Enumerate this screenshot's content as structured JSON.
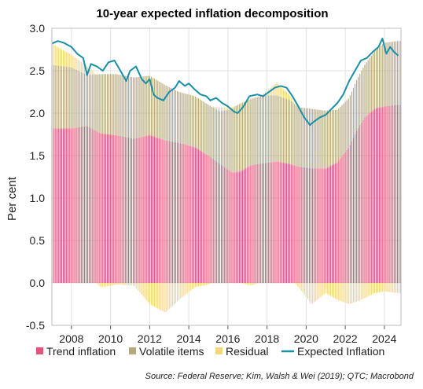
{
  "chart_data": {
    "type": "bar",
    "title": "10-year expected inflation decomposition",
    "ylabel": "Per cent",
    "ylim": [
      -0.5,
      3.0
    ],
    "yticks": [
      "3.0",
      "2.5",
      "2.0",
      "1.5",
      "1.0",
      "0.5",
      "0.0",
      "-0.5"
    ],
    "xticks": [
      "2008",
      "2010",
      "2012",
      "2014",
      "2016",
      "2018",
      "2020",
      "2022",
      "2024"
    ],
    "xlim": [
      2007.0,
      2024.85
    ],
    "grid": true,
    "legend_position": "bottom",
    "source": "Source: Federal Reserve; Kim, Walsh & Wei (2019); QTC; Macrobond",
    "colors": {
      "trend": "#e8527a",
      "volatile": "#b5a97e",
      "residual": "#f5d77a",
      "expected": "#1a8fa5"
    },
    "series": [
      {
        "name": "Trend inflation",
        "type": "stacked-bar",
        "points": [
          [
            2007.0,
            1.82
          ],
          [
            2008.0,
            1.82
          ],
          [
            2008.8,
            1.85
          ],
          [
            2009.5,
            1.76
          ],
          [
            2010.3,
            1.74
          ],
          [
            2011.2,
            1.7
          ],
          [
            2012.0,
            1.74
          ],
          [
            2012.8,
            1.68
          ],
          [
            2013.5,
            1.65
          ],
          [
            2014.3,
            1.6
          ],
          [
            2015.0,
            1.5
          ],
          [
            2015.6,
            1.4
          ],
          [
            2016.2,
            1.3
          ],
          [
            2016.6,
            1.31
          ],
          [
            2017.2,
            1.39
          ],
          [
            2017.8,
            1.41
          ],
          [
            2018.5,
            1.43
          ],
          [
            2019.2,
            1.4
          ],
          [
            2019.6,
            1.37
          ],
          [
            2020.3,
            1.35
          ],
          [
            2021.0,
            1.35
          ],
          [
            2021.6,
            1.42
          ],
          [
            2022.2,
            1.6
          ],
          [
            2022.6,
            1.8
          ],
          [
            2023.0,
            1.95
          ],
          [
            2023.5,
            2.05
          ],
          [
            2024.0,
            2.08
          ],
          [
            2024.7,
            2.1
          ]
        ]
      },
      {
        "name": "Volatile items",
        "type": "stacked-bar",
        "points": [
          [
            2007.0,
            0.75
          ],
          [
            2008.0,
            0.72
          ],
          [
            2008.8,
            0.6
          ],
          [
            2009.5,
            0.7
          ],
          [
            2010.3,
            0.72
          ],
          [
            2011.2,
            0.72
          ],
          [
            2012.0,
            0.7
          ],
          [
            2012.8,
            0.65
          ],
          [
            2013.5,
            0.6
          ],
          [
            2014.3,
            0.6
          ],
          [
            2015.0,
            0.6
          ],
          [
            2015.6,
            0.62
          ],
          [
            2016.2,
            0.75
          ],
          [
            2016.6,
            0.8
          ],
          [
            2017.2,
            0.78
          ],
          [
            2017.8,
            0.8
          ],
          [
            2018.5,
            0.78
          ],
          [
            2019.2,
            0.75
          ],
          [
            2019.6,
            0.7
          ],
          [
            2020.3,
            0.7
          ],
          [
            2021.0,
            0.68
          ],
          [
            2021.6,
            0.62
          ],
          [
            2022.2,
            0.58
          ],
          [
            2022.6,
            0.6
          ],
          [
            2023.0,
            0.62
          ],
          [
            2023.5,
            0.68
          ],
          [
            2024.0,
            0.75
          ],
          [
            2024.7,
            0.75
          ]
        ]
      },
      {
        "name": "Residual",
        "type": "stacked-bar",
        "points": [
          [
            2007.0,
            0.25
          ],
          [
            2008.0,
            0.15
          ],
          [
            2008.8,
            0.1
          ],
          [
            2009.5,
            -0.05
          ],
          [
            2010.3,
            -0.02
          ],
          [
            2011.2,
            -0.03
          ],
          [
            2012.0,
            -0.25
          ],
          [
            2012.8,
            -0.35
          ],
          [
            2013.5,
            -0.2
          ],
          [
            2014.3,
            -0.05
          ],
          [
            2015.0,
            -0.02
          ],
          [
            2015.6,
            0.05
          ],
          [
            2016.2,
            0.02
          ],
          [
            2016.6,
            0.0
          ],
          [
            2017.2,
            -0.03
          ],
          [
            2017.8,
            0.02
          ],
          [
            2018.5,
            0.15
          ],
          [
            2019.2,
            0.05
          ],
          [
            2019.6,
            -0.05
          ],
          [
            2020.3,
            -0.25
          ],
          [
            2021.0,
            -0.12
          ],
          [
            2021.6,
            -0.2
          ],
          [
            2022.2,
            -0.25
          ],
          [
            2022.6,
            -0.22
          ],
          [
            2023.0,
            -0.18
          ],
          [
            2023.5,
            -0.12
          ],
          [
            2024.0,
            -0.1
          ],
          [
            2024.7,
            -0.12
          ]
        ]
      },
      {
        "name": "Expected Inflation",
        "type": "line",
        "points": [
          [
            2007.0,
            2.82
          ],
          [
            2007.3,
            2.85
          ],
          [
            2007.6,
            2.83
          ],
          [
            2008.0,
            2.78
          ],
          [
            2008.3,
            2.7
          ],
          [
            2008.6,
            2.65
          ],
          [
            2008.8,
            2.45
          ],
          [
            2009.0,
            2.58
          ],
          [
            2009.3,
            2.55
          ],
          [
            2009.6,
            2.5
          ],
          [
            2009.9,
            2.6
          ],
          [
            2010.2,
            2.62
          ],
          [
            2010.5,
            2.5
          ],
          [
            2010.8,
            2.38
          ],
          [
            2011.0,
            2.5
          ],
          [
            2011.3,
            2.55
          ],
          [
            2011.6,
            2.4
          ],
          [
            2011.8,
            2.35
          ],
          [
            2012.0,
            2.4
          ],
          [
            2012.2,
            2.22
          ],
          [
            2012.4,
            2.18
          ],
          [
            2012.7,
            2.15
          ],
          [
            2013.0,
            2.25
          ],
          [
            2013.3,
            2.3
          ],
          [
            2013.5,
            2.38
          ],
          [
            2013.8,
            2.32
          ],
          [
            2014.0,
            2.35
          ],
          [
            2014.3,
            2.28
          ],
          [
            2014.6,
            2.22
          ],
          [
            2014.9,
            2.2
          ],
          [
            2015.1,
            2.15
          ],
          [
            2015.4,
            2.18
          ],
          [
            2015.7,
            2.12
          ],
          [
            2016.0,
            2.08
          ],
          [
            2016.3,
            2.02
          ],
          [
            2016.5,
            2.0
          ],
          [
            2016.8,
            2.08
          ],
          [
            2017.1,
            2.2
          ],
          [
            2017.5,
            2.22
          ],
          [
            2017.8,
            2.2
          ],
          [
            2018.1,
            2.25
          ],
          [
            2018.4,
            2.3
          ],
          [
            2018.7,
            2.32
          ],
          [
            2019.0,
            2.3
          ],
          [
            2019.3,
            2.2
          ],
          [
            2019.6,
            2.08
          ],
          [
            2019.9,
            1.95
          ],
          [
            2020.2,
            1.86
          ],
          [
            2020.4,
            1.9
          ],
          [
            2020.7,
            1.95
          ],
          [
            2021.0,
            1.98
          ],
          [
            2021.3,
            2.05
          ],
          [
            2021.6,
            2.12
          ],
          [
            2021.9,
            2.22
          ],
          [
            2022.2,
            2.38
          ],
          [
            2022.5,
            2.5
          ],
          [
            2022.8,
            2.62
          ],
          [
            2023.1,
            2.65
          ],
          [
            2023.4,
            2.72
          ],
          [
            2023.7,
            2.78
          ],
          [
            2023.9,
            2.88
          ],
          [
            2024.1,
            2.7
          ],
          [
            2024.3,
            2.78
          ],
          [
            2024.5,
            2.72
          ],
          [
            2024.7,
            2.68
          ]
        ]
      }
    ]
  }
}
